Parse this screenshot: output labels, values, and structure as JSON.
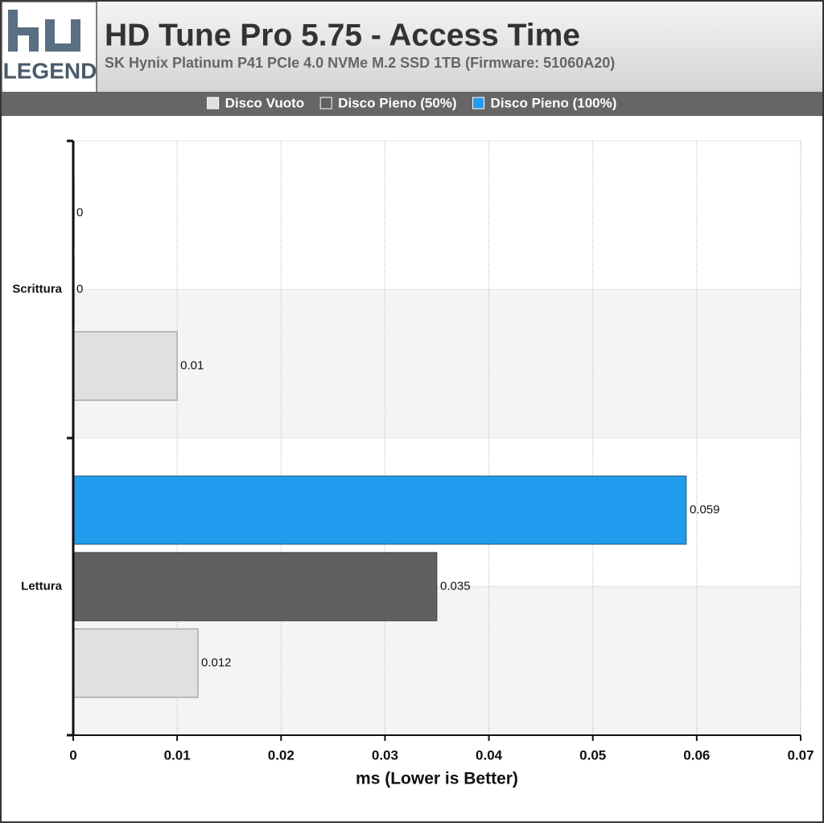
{
  "chart_data": {
    "type": "hbar",
    "title": "HD Tune Pro 5.75 - Access Time",
    "subtitle": "SK Hynix Platinum P41 PCIe 4.0 NVMe M.2 SSD 1TB (Firmware: 51060A20)",
    "logo": "LEGEND",
    "x_label": "ms (Lower is Better)",
    "categories": [
      "Scrittura",
      "Lettura"
    ],
    "series": [
      {
        "name": "Disco Vuoto",
        "color": "#e0e0e0",
        "values": [
          0.01,
          0.012
        ]
      },
      {
        "name": "Disco Pieno (50%)",
        "color": "#606060",
        "values": [
          0,
          0.035
        ]
      },
      {
        "name": "Disco Pieno (100%)",
        "color": "#229cee",
        "values": [
          0,
          0.059
        ]
      }
    ],
    "xlim": [
      0,
      0.07
    ],
    "xticks": [
      0,
      0.01,
      0.02,
      0.03,
      0.04,
      0.05,
      0.06,
      0.07
    ],
    "grid": true
  }
}
